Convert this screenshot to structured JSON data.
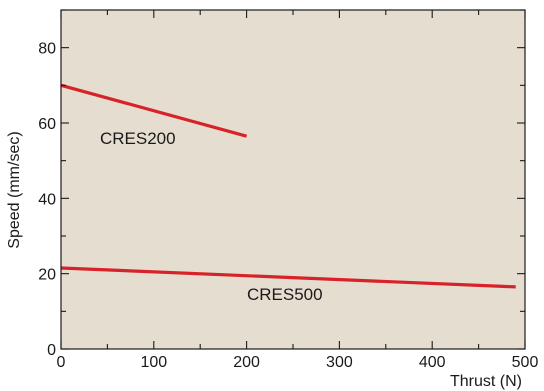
{
  "chart_data": {
    "type": "line",
    "title": "",
    "xlabel": "Thrust (N)",
    "ylabel": "Speed (mm/sec)",
    "xlim": [
      0,
      500
    ],
    "ylim": [
      0,
      90
    ],
    "x_ticks": [
      "0",
      "100",
      "200",
      "300",
      "400",
      "500"
    ],
    "y_ticks": [
      "0",
      "20",
      "40",
      "60",
      "80"
    ],
    "grid": false,
    "series": [
      {
        "name": "CRES200",
        "x": [
          0,
          200
        ],
        "y": [
          70,
          56.5
        ]
      },
      {
        "name": "CRES500",
        "x": [
          0,
          490
        ],
        "y": [
          21.5,
          16.5
        ]
      }
    ]
  },
  "colors": {
    "plot_background": "#e5ddd0",
    "line": "#d8222a",
    "axis": "#1a1a1a"
  }
}
